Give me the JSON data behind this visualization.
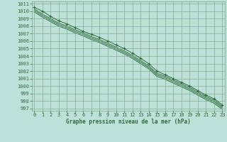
{
  "xlabel": "Graphe pression niveau de la mer (hPa)",
  "xlim": [
    0,
    23
  ],
  "ylim": [
    997,
    1011
  ],
  "yticks": [
    997,
    998,
    999,
    1000,
    1001,
    1002,
    1003,
    1004,
    1005,
    1006,
    1007,
    1008,
    1009,
    1010,
    1011
  ],
  "xticks": [
    0,
    1,
    2,
    3,
    4,
    5,
    6,
    7,
    8,
    9,
    10,
    11,
    12,
    13,
    14,
    15,
    16,
    17,
    18,
    19,
    20,
    21,
    22,
    23
  ],
  "bg_color": "#bde0d8",
  "grid_major_color": "#7aaa8a",
  "grid_minor_color": "#9ecfbe",
  "line_color": "#2d6b3c",
  "lines": [
    [
      1010.5,
      1010.0,
      1009.3,
      1008.7,
      1008.3,
      1007.8,
      1007.3,
      1006.9,
      1006.5,
      1006.0,
      1005.5,
      1005.0,
      1004.4,
      1003.7,
      1003.0,
      1002.0,
      1001.5,
      1001.0,
      1000.5,
      1000.0,
      999.4,
      998.8,
      998.3,
      997.5
    ],
    [
      1010.3,
      1009.6,
      1009.0,
      1008.4,
      1008.0,
      1007.5,
      1007.1,
      1006.6,
      1006.2,
      1005.7,
      1005.2,
      1004.7,
      1004.1,
      1003.4,
      1002.7,
      1001.7,
      1001.3,
      1000.8,
      1000.3,
      999.8,
      999.2,
      998.6,
      998.1,
      997.3
    ],
    [
      1010.1,
      1009.4,
      1008.8,
      1008.2,
      1007.8,
      1007.3,
      1006.9,
      1006.4,
      1006.0,
      1005.5,
      1005.0,
      1004.5,
      1003.9,
      1003.2,
      1002.5,
      1001.5,
      1001.1,
      1000.6,
      1000.1,
      999.6,
      999.0,
      998.4,
      997.9,
      997.1
    ],
    [
      1009.9,
      1009.2,
      1008.6,
      1008.0,
      1007.6,
      1007.1,
      1006.7,
      1006.2,
      1005.8,
      1005.3,
      1004.8,
      1004.3,
      1003.7,
      1003.0,
      1002.3,
      1001.3,
      1000.9,
      1000.4,
      999.9,
      999.4,
      998.8,
      998.2,
      997.7,
      996.9
    ]
  ],
  "marker_indices": [
    0,
    3,
    6,
    9,
    12,
    14,
    17,
    20,
    23
  ]
}
